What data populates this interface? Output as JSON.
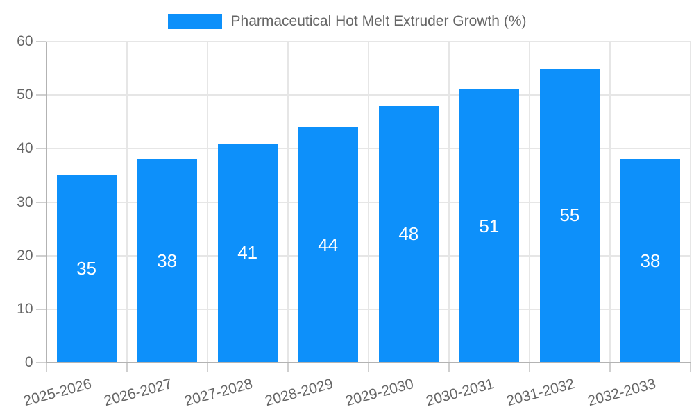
{
  "chart_data": {
    "type": "bar",
    "title": "Pharmaceutical Hot Melt Extruder Growth (%)",
    "categories": [
      "2025-2026",
      "2026-2027",
      "2027-2028",
      "2028-2029",
      "2029-2030",
      "2030-2031",
      "2031-2032",
      "2032-2033"
    ],
    "values": [
      35,
      38,
      41,
      44,
      48,
      51,
      55,
      38
    ],
    "xlabel": "",
    "ylabel": "",
    "ylim": [
      0,
      60
    ],
    "yticks": [
      0,
      10,
      20,
      30,
      40,
      50,
      60
    ],
    "legend_position": "top",
    "grid": true,
    "x_label_rotation_deg": -15,
    "bar_color": "#0d90fa",
    "value_label_color": "#ffffff",
    "axis_text_color": "#666666",
    "grid_color": "#e6e6e6",
    "axis_line_color": "#b3b3b3",
    "tick_color": "#cfcfcf",
    "background": "#ffffff"
  }
}
